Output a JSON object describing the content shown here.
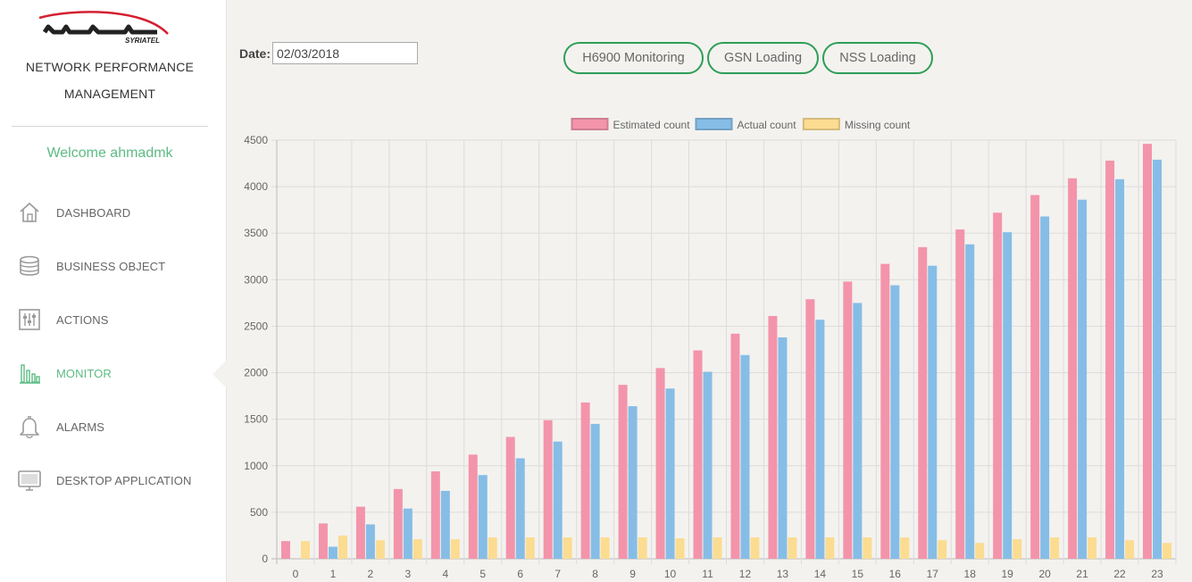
{
  "brand": {
    "logo_text": "SYRIATEL"
  },
  "app": {
    "title_line1": "NETWORK PERFORMANCE",
    "title_line2": "MANAGEMENT",
    "welcome": "Welcome ahmadmk"
  },
  "nav": [
    {
      "label": "DASHBOARD",
      "icon": "home-icon"
    },
    {
      "label": "BUSINESS OBJECT",
      "icon": "database-icon"
    },
    {
      "label": "ACTIONS",
      "icon": "sliders-icon"
    },
    {
      "label": "MONITOR",
      "icon": "bar-chart-icon",
      "active": true
    },
    {
      "label": "ALARMS",
      "icon": "bell-icon"
    },
    {
      "label": "DESKTOP APPLICATION",
      "icon": "monitor-icon"
    }
  ],
  "filter": {
    "date_label": "Date:",
    "date_value": "02/03/2018"
  },
  "buttons": {
    "h6900": "H6900 Monitoring",
    "gsn": "GSN Loading",
    "nss": "NSS Loading"
  },
  "colors": {
    "accent": "#5dbb84",
    "button_border": "#2e9e55",
    "estimated": "#f394ab",
    "actual": "#86bde6",
    "missing": "#fbdc91"
  },
  "chart_data": {
    "type": "bar",
    "categories": [
      "0",
      "1",
      "2",
      "3",
      "4",
      "5",
      "6",
      "7",
      "8",
      "9",
      "10",
      "11",
      "12",
      "13",
      "14",
      "15",
      "16",
      "17",
      "18",
      "19",
      "20",
      "21",
      "22",
      "23"
    ],
    "series": [
      {
        "name": "Estimated count",
        "color": "#f394ab",
        "values": [
          190,
          380,
          560,
          750,
          940,
          1120,
          1310,
          1490,
          1680,
          1870,
          2050,
          2240,
          2420,
          2610,
          2790,
          2980,
          3170,
          3350,
          3540,
          3720,
          3910,
          4090,
          4280,
          4460
        ]
      },
      {
        "name": "Actual count",
        "color": "#86bde6",
        "values": [
          0,
          130,
          370,
          540,
          730,
          900,
          1080,
          1260,
          1450,
          1640,
          1830,
          2010,
          2190,
          2380,
          2570,
          2750,
          2940,
          3150,
          3380,
          3510,
          3680,
          3860,
          4080,
          4290
        ]
      },
      {
        "name": "Missing count",
        "color": "#fbdc91",
        "values": [
          190,
          250,
          200,
          210,
          210,
          230,
          230,
          230,
          230,
          230,
          220,
          230,
          230,
          230,
          230,
          230,
          230,
          200,
          170,
          210,
          230,
          230,
          200,
          170
        ]
      }
    ],
    "ylim": [
      0,
      4500
    ],
    "yticks": [
      0,
      500,
      1000,
      1500,
      2000,
      2500,
      3000,
      3500,
      4000,
      4500
    ],
    "grid": true,
    "legend": "top"
  }
}
